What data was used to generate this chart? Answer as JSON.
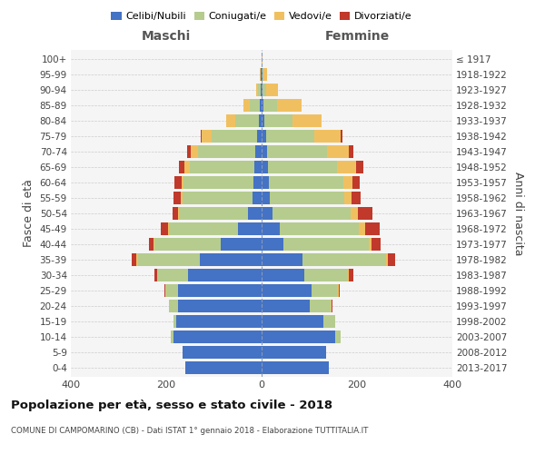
{
  "age_groups": [
    "0-4",
    "5-9",
    "10-14",
    "15-19",
    "20-24",
    "25-29",
    "30-34",
    "35-39",
    "40-44",
    "45-49",
    "50-54",
    "55-59",
    "60-64",
    "65-69",
    "70-74",
    "75-79",
    "80-84",
    "85-89",
    "90-94",
    "95-99",
    "100+"
  ],
  "birth_years": [
    "2013-2017",
    "2008-2012",
    "2003-2007",
    "1998-2002",
    "1993-1997",
    "1988-1992",
    "1983-1987",
    "1978-1982",
    "1973-1977",
    "1968-1972",
    "1963-1967",
    "1958-1962",
    "1953-1957",
    "1948-1952",
    "1943-1947",
    "1938-1942",
    "1933-1937",
    "1928-1932",
    "1923-1927",
    "1918-1922",
    "≤ 1917"
  ],
  "maschi": {
    "celibi": [
      160,
      165,
      185,
      180,
      175,
      175,
      155,
      130,
      85,
      50,
      28,
      20,
      18,
      16,
      14,
      10,
      5,
      4,
      2,
      1,
      0
    ],
    "coniugati": [
      0,
      0,
      5,
      5,
      20,
      25,
      65,
      130,
      140,
      145,
      145,
      145,
      145,
      135,
      120,
      95,
      50,
      20,
      5,
      1,
      0
    ],
    "vedovi": [
      0,
      0,
      0,
      0,
      0,
      2,
      0,
      2,
      2,
      2,
      2,
      5,
      5,
      10,
      15,
      20,
      20,
      15,
      5,
      2,
      0
    ],
    "divorziati": [
      0,
      0,
      0,
      0,
      0,
      2,
      5,
      10,
      10,
      15,
      12,
      15,
      15,
      12,
      8,
      2,
      0,
      0,
      0,
      0,
      0
    ]
  },
  "femmine": {
    "nubili": [
      140,
      135,
      155,
      130,
      100,
      105,
      90,
      85,
      45,
      38,
      22,
      18,
      16,
      14,
      12,
      10,
      5,
      3,
      2,
      1,
      0
    ],
    "coniugate": [
      0,
      0,
      10,
      25,
      45,
      55,
      90,
      175,
      180,
      165,
      165,
      155,
      155,
      145,
      125,
      100,
      60,
      30,
      8,
      2,
      0
    ],
    "vedove": [
      0,
      0,
      0,
      0,
      2,
      2,
      2,
      5,
      5,
      15,
      15,
      15,
      20,
      40,
      45,
      55,
      60,
      50,
      25,
      8,
      2
    ],
    "divorziate": [
      0,
      0,
      0,
      0,
      2,
      2,
      10,
      15,
      20,
      30,
      30,
      20,
      15,
      15,
      10,
      5,
      0,
      0,
      0,
      0,
      0
    ]
  },
  "colors": {
    "celibi_nubili": "#4472c4",
    "coniugati": "#b5cc8e",
    "vedovi": "#f0c060",
    "divorziati": "#c0392b"
  },
  "xlim": 400,
  "title": "Popolazione per età, sesso e stato civile - 2018",
  "subtitle": "COMUNE DI CAMPOMARINO (CB) - Dati ISTAT 1° gennaio 2018 - Elaborazione TUTTITALIA.IT",
  "ylabel_left": "Fasce di età",
  "ylabel_right": "Anni di nascita",
  "xlabel_left": "Maschi",
  "xlabel_right": "Femmine"
}
